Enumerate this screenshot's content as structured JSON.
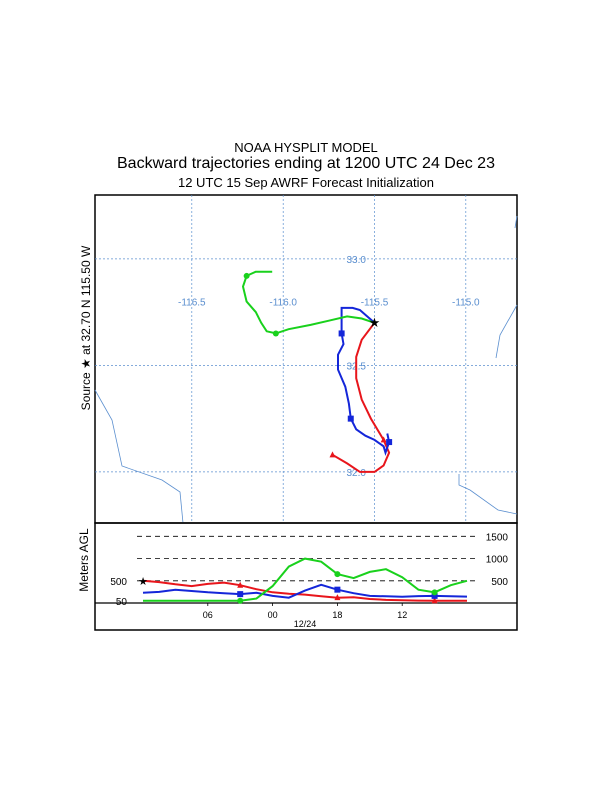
{
  "header": {
    "model": "NOAA HYSPLIT MODEL",
    "title": "Backward trajectories ending at 1200 UTC 24 Dec 23",
    "subtitle": "12 UTC 15 Sep    AWRF  Forecast Initialization"
  },
  "colors": {
    "grid": "#5b8fcf",
    "boundary": "#5b8fcf",
    "series": [
      "#e8151b",
      "#1426d9",
      "#19d11c"
    ]
  },
  "chart_data": [
    {
      "type": "map",
      "ylabel": "Source ★ at  32.70 N  115.50 W",
      "grid_labels": {
        "lon": [
          "-116.5",
          "-116.0",
          "-115.5",
          "-115.0"
        ],
        "lat": [
          "33.0",
          "32.5",
          "32.0"
        ]
      },
      "lon_lines": [
        -116.5,
        -116.0,
        -115.5,
        -115.0
      ],
      "lat_lines": [
        33.0,
        32.5,
        32.0
      ],
      "xlim": [
        -117.03,
        -114.72
      ],
      "ylim": [
        31.76,
        33.3
      ],
      "source": {
        "lon": -115.5,
        "lat": 32.7
      },
      "series": [
        {
          "color": "red",
          "points": [
            [
              -115.5,
              32.7
            ],
            [
              -115.57,
              32.62
            ],
            [
              -115.6,
              32.54
            ],
            [
              -115.6,
              32.44
            ],
            [
              -115.57,
              32.34
            ],
            [
              -115.52,
              32.25
            ],
            [
              -115.45,
              32.15
            ],
            [
              -115.42,
              32.09
            ],
            [
              -115.45,
              32.03
            ],
            [
              -115.5,
              32.0
            ],
            [
              -115.58,
              32.0
            ],
            [
              -115.65,
              32.04
            ],
            [
              -115.73,
              32.08
            ]
          ]
        },
        {
          "color": "blue",
          "points": [
            [
              -115.5,
              32.7
            ],
            [
              -115.54,
              32.73
            ],
            [
              -115.58,
              32.76
            ],
            [
              -115.62,
              32.77
            ],
            [
              -115.68,
              32.77
            ],
            [
              -115.68,
              32.72
            ],
            [
              -115.68,
              32.65
            ],
            [
              -115.67,
              32.6
            ],
            [
              -115.7,
              32.55
            ],
            [
              -115.7,
              32.48
            ],
            [
              -115.66,
              32.4
            ],
            [
              -115.64,
              32.32
            ],
            [
              -115.63,
              32.25
            ],
            [
              -115.6,
              32.2
            ],
            [
              -115.55,
              32.17
            ],
            [
              -115.5,
              32.15
            ],
            [
              -115.45,
              32.12
            ],
            [
              -115.44,
              32.09
            ],
            [
              -115.42,
              32.14
            ],
            [
              -115.43,
              32.18
            ]
          ]
        },
        {
          "color": "green",
          "points": [
            [
              -115.5,
              32.7
            ],
            [
              -115.57,
              32.72
            ],
            [
              -115.65,
              32.73
            ],
            [
              -115.75,
              32.71
            ],
            [
              -115.85,
              32.69
            ],
            [
              -115.97,
              32.67
            ],
            [
              -116.04,
              32.65
            ],
            [
              -116.09,
              32.66
            ],
            [
              -116.12,
              32.7
            ],
            [
              -116.15,
              32.75
            ],
            [
              -116.2,
              32.8
            ],
            [
              -116.22,
              32.87
            ],
            [
              -116.2,
              32.92
            ],
            [
              -116.15,
              32.94
            ],
            [
              -116.1,
              32.94
            ],
            [
              -116.06,
              32.94
            ]
          ]
        }
      ]
    },
    {
      "type": "line",
      "ylabel": "Meters AGL",
      "x_ticks": [
        "06",
        "00",
        "18",
        "12"
      ],
      "x_date_label": "12/24",
      "x_hours_before_end": [
        48,
        36,
        24,
        12
      ],
      "ref_levels": [
        1500,
        1000,
        500
      ],
      "y_ticks": [
        500,
        50
      ],
      "xlim": [
        0,
        60
      ],
      "ylim": [
        0,
        1800
      ],
      "series": [
        {
          "color": "red",
          "x": [
            0,
            3,
            6,
            9,
            12,
            15,
            18,
            21,
            24,
            27,
            30,
            33,
            36,
            39,
            42,
            45,
            48,
            51,
            54,
            57,
            60
          ],
          "y": [
            500,
            470,
            420,
            380,
            430,
            460,
            400,
            310,
            240,
            210,
            190,
            150,
            120,
            130,
            90,
            70,
            60,
            55,
            50,
            50,
            50
          ]
        },
        {
          "color": "blue",
          "x": [
            0,
            3,
            6,
            9,
            12,
            15,
            18,
            21,
            24,
            27,
            30,
            33,
            36,
            39,
            42,
            45,
            48,
            51,
            54,
            57,
            60
          ],
          "y": [
            230,
            250,
            300,
            270,
            240,
            220,
            200,
            230,
            160,
            120,
            280,
            410,
            300,
            220,
            160,
            150,
            140,
            155,
            160,
            150,
            145
          ]
        },
        {
          "color": "green",
          "x": [
            0,
            3,
            6,
            9,
            12,
            15,
            18,
            21,
            24,
            27,
            30,
            33,
            36,
            39,
            42,
            45,
            48,
            51,
            54,
            57,
            60
          ],
          "y": [
            50,
            50,
            50,
            50,
            50,
            50,
            50,
            100,
            380,
            820,
            1000,
            930,
            650,
            560,
            700,
            760,
            580,
            300,
            240,
            400,
            500
          ]
        }
      ]
    }
  ]
}
